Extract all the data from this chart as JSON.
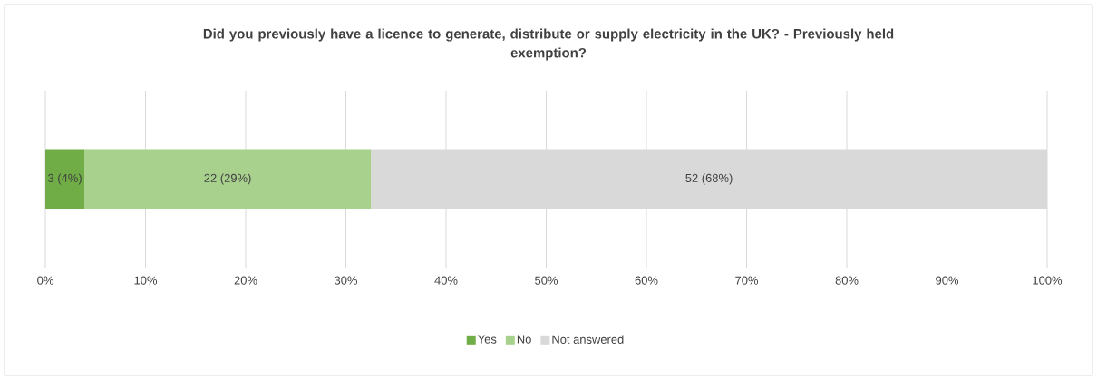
{
  "chart_data": {
    "type": "bar",
    "orientation": "horizontal",
    "stacked": true,
    "title": "Did you previously have a licence to generate, distribute or supply electricity in the UK?  - Previously held exemption?",
    "categories": [
      null
    ],
    "series": [
      {
        "name": "Yes",
        "color": "#70ad47",
        "values": [
          3.9
        ],
        "value_labels": [
          "3 (4%)"
        ]
      },
      {
        "name": "No",
        "color": "#a9d18e",
        "values": [
          28.6
        ],
        "value_labels": [
          "22 (29%)"
        ]
      },
      {
        "name": "Not answered",
        "color": "#d9d9d9",
        "values": [
          67.5
        ],
        "value_labels": [
          "52 (68%)"
        ]
      }
    ],
    "xlim": [
      0,
      100
    ],
    "xticks": [
      {
        "value": 0,
        "label": "0%"
      },
      {
        "value": 10,
        "label": "10%"
      },
      {
        "value": 20,
        "label": "20%"
      },
      {
        "value": 30,
        "label": "30%"
      },
      {
        "value": 40,
        "label": "40%"
      },
      {
        "value": 50,
        "label": "50%"
      },
      {
        "value": 60,
        "label": "60%"
      },
      {
        "value": 70,
        "label": "70%"
      },
      {
        "value": 80,
        "label": "80%"
      },
      {
        "value": 90,
        "label": "90%"
      },
      {
        "value": 100,
        "label": "100%"
      }
    ],
    "grid": "x",
    "legend": "bottom"
  }
}
